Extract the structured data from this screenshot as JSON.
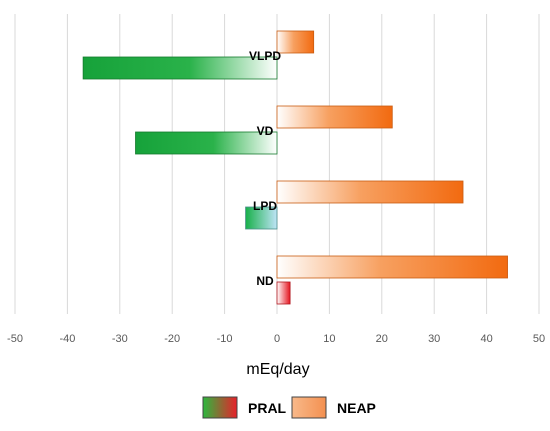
{
  "chart_data": {
    "type": "bar",
    "orientation": "horizontal",
    "categories": [
      "VLPD",
      "VD",
      "LPD",
      "ND"
    ],
    "series": [
      {
        "name": "PRAL",
        "values": [
          -37,
          -27,
          -6,
          2.5
        ]
      },
      {
        "name": "NEAP",
        "values": [
          7,
          22,
          35.5,
          44
        ]
      }
    ],
    "xlabel": "mEq/day",
    "ylabel": "",
    "xlim": [
      -50,
      50
    ],
    "xticks": [
      -50,
      -40,
      -30,
      -20,
      -10,
      0,
      10,
      20,
      30,
      40,
      50
    ],
    "grid": true,
    "legend_position": "bottom",
    "colors": {
      "PRAL_negative": "#1faa3c",
      "PRAL_positive": "#e8202a",
      "NEAP": "#f26c12",
      "grid": "#d9d9d9"
    }
  }
}
